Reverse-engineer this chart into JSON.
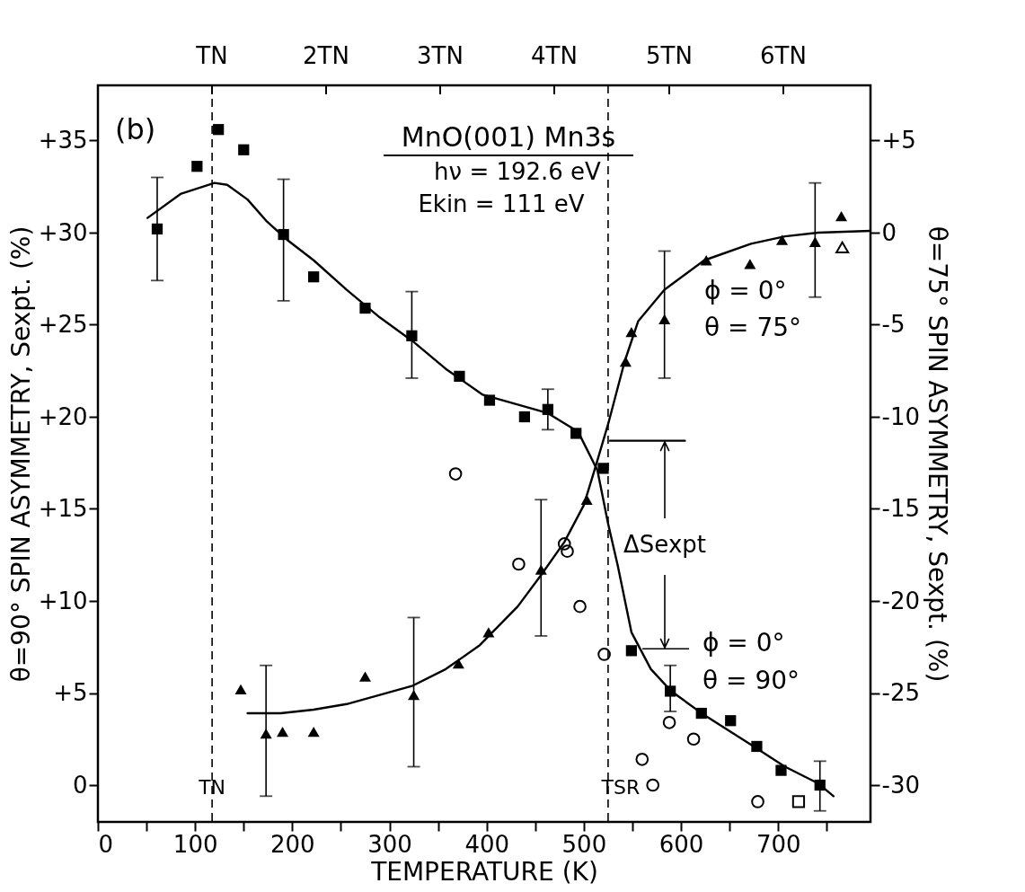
{
  "chart_data": {
    "type": "scatter",
    "xlabel": "TEMPERATURE (K)",
    "ylabel": "θ=90° SPIN ASYMMETRY, Sexpt. (%)",
    "y2label": "θ=75° SPIN ASYMMETRY, Sexpt. (%)",
    "xlim": [
      0,
      795
    ],
    "xticks": [
      0,
      {
        "value": 50,
        "label": null
      },
      100,
      {
        "value": 150,
        "label": null
      },
      200,
      {
        "value": 250,
        "label": null
      },
      300,
      {
        "value": 350,
        "label": null
      },
      400,
      {
        "value": 450,
        "label": null
      },
      500,
      {
        "value": 550,
        "label": null
      },
      600,
      {
        "value": 650,
        "label": null
      },
      700,
      {
        "value": 750,
        "label": null
      }
    ],
    "ylim": [
      -2,
      38
    ],
    "yticks": [
      0,
      {
        "value": 5,
        "label": "+5"
      },
      {
        "value": 10,
        "label": "+10"
      },
      {
        "value": 15,
        "label": "+15"
      },
      {
        "value": 20,
        "label": "+20"
      },
      {
        "value": 25,
        "label": "+25"
      },
      {
        "value": 30,
        "label": "+30"
      },
      {
        "value": 35,
        "label": "+35"
      }
    ],
    "y2lim": [
      -32,
      8
    ],
    "y2ticks": [
      {
        "value": 5,
        "label": "+5"
      },
      0,
      -5,
      -10,
      -15,
      -20,
      -25,
      -30
    ],
    "grid": false,
    "series": [
      {
        "marker": "square",
        "color": "#000000",
        "axis": "y",
        "x": [
          61,
          102,
          124,
          150,
          191,
          222,
          275,
          323,
          372,
          403,
          439,
          463,
          492,
          520,
          549,
          589,
          621,
          651,
          678,
          703,
          743
        ],
        "values": [
          30.2,
          33.6,
          35.6,
          34.5,
          29.9,
          27.6,
          25.9,
          24.4,
          22.2,
          20.9,
          20.0,
          20.4,
          19.1,
          17.2,
          7.3,
          5.1,
          3.9,
          3.5,
          2.1,
          0.8,
          0.0
        ],
        "errors": [
          [
            27.4,
            33.0
          ],
          null,
          null,
          null,
          [
            26.3,
            32.9
          ],
          null,
          null,
          [
            22.1,
            26.8
          ],
          null,
          null,
          null,
          [
            19.3,
            21.5
          ],
          null,
          null,
          null,
          [
            4.0,
            6.5
          ],
          null,
          null,
          null,
          null,
          [
            -1.4,
            1.3
          ]
        ]
      },
      {
        "marker": "triangle",
        "color": "#000000",
        "axis": "y2",
        "x": [
          147,
          173,
          190,
          222,
          275,
          325,
          371,
          402,
          456,
          503,
          543,
          549,
          583,
          626,
          671,
          704,
          738,
          765
        ],
        "values": [
          -24.8,
          -27.2,
          -27.1,
          -27.1,
          -24.1,
          -25.1,
          -23.4,
          -21.7,
          -18.3,
          -14.5,
          -7.0,
          -5.4,
          -4.7,
          -1.5,
          -1.7,
          -0.4,
          -0.5,
          0.9
        ],
        "errors": [
          null,
          [
            -30.6,
            -23.5
          ],
          null,
          null,
          null,
          [
            -29.0,
            -20.9
          ],
          null,
          null,
          [
            -21.9,
            -14.5
          ],
          null,
          null,
          null,
          [
            -7.9,
            -1.0
          ],
          null,
          null,
          null,
          [
            -3.5,
            2.7
          ],
          null
        ]
      },
      {
        "marker": "circle",
        "color": "#000000",
        "axis": "y",
        "x": [
          368,
          433,
          480,
          483,
          496,
          521,
          560,
          571,
          588,
          613,
          679
        ],
        "values": [
          16.9,
          12.0,
          13.1,
          12.7,
          9.7,
          7.1,
          1.4,
          0.0,
          3.4,
          2.5,
          -0.9
        ]
      },
      {
        "marker": "square",
        "color": "#000000",
        "axis": "y",
        "x": [
          721
        ],
        "values": [
          -0.9
        ]
      },
      {
        "marker": "triangle",
        "color": "#000000",
        "axis": "y2",
        "x": [
          766
        ],
        "values": [
          -0.8
        ]
      },
      {
        "type": "line",
        "color": "#000000",
        "axis": "y",
        "x": [
          51,
          85,
          120,
          133,
          154,
          174,
          195,
          222,
          256,
          290,
          324,
          358,
          396,
          463,
          494,
          514,
          525,
          535,
          549,
          569,
          590,
          624,
          672,
          707,
          741,
          757
        ],
        "values": [
          30.8,
          32.1,
          32.7,
          32.6,
          31.8,
          30.6,
          29.6,
          28.5,
          26.9,
          25.4,
          24.1,
          22.6,
          21.2,
          20.2,
          19.2,
          17.1,
          14.2,
          11.9,
          8.3,
          6.3,
          5.1,
          3.8,
          2.2,
          1.0,
          0.1,
          -0.6
        ]
      },
      {
        "type": "line",
        "color": "#000000",
        "axis": "y2",
        "x": [
          154,
          188,
          222,
          256,
          290,
          324,
          358,
          393,
          432,
          456,
          480,
          500,
          511,
          525,
          542,
          556,
          583,
          624,
          672,
          707,
          741,
          795
        ],
        "values": [
          -26.1,
          -26.1,
          -25.9,
          -25.6,
          -25.1,
          -24.6,
          -23.7,
          -22.4,
          -20.3,
          -18.6,
          -16.8,
          -14.8,
          -12.9,
          -10.4,
          -7.0,
          -4.8,
          -3.1,
          -1.5,
          -0.6,
          -0.2,
          0.0,
          0.1
        ]
      },
      {
        "type": "line",
        "color": "#000000",
        "axis": "y",
        "x": [
          527,
          604
        ],
        "values": [
          18.7,
          18.7
        ]
      }
    ],
    "ref_lines": [
      {
        "axis": "x",
        "value": 117.5,
        "label": "TN",
        "line_style": "dashed"
      },
      {
        "axis": "x",
        "value": 525,
        "label": "TSR",
        "line_style": "dashed"
      }
    ],
    "annotations": [
      "(b)",
      "MnO(001) Mn3s",
      "hν = 192.6 eV",
      "Ekin = 111 eV",
      "ϕ = 0°",
      "θ = 75°",
      "ϕ = 0°",
      "θ = 90°",
      "ΔSexpt",
      "TN",
      "2TN",
      "3TN",
      "4TN",
      "5TN",
      "6TN"
    ]
  }
}
